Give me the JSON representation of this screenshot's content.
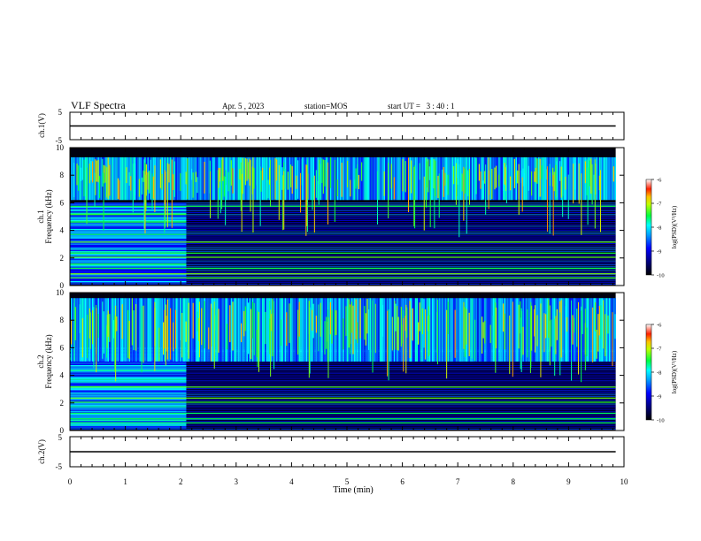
{
  "header": {
    "title": "VLF Spectra",
    "date": "Apr. 5 , 2023",
    "station": "station=MOS",
    "start": "start UT =   3 : 40 : 1"
  },
  "chart_data": [
    {
      "type": "line",
      "name": "ch1-voltage",
      "ylabel": "ch.1(V)",
      "ylim": [
        -5,
        5
      ],
      "yticks": [
        "5",
        "-5"
      ],
      "x": [
        0,
        9.85
      ],
      "values": [
        0,
        0
      ]
    },
    {
      "type": "heatmap",
      "name": "ch1-spectrogram",
      "ylabel": "ch.1\nFrequency (kHz)",
      "ylim": [
        0,
        10
      ],
      "yticks": [
        "0",
        "2",
        "4",
        "6",
        "8",
        "10"
      ],
      "data_xlim": [
        0,
        9.85
      ],
      "noise_band_end_min": 2.1,
      "chorus_band_khz": [
        6.2,
        9.3
      ],
      "colorbar": {
        "label": "log(PSD)(V²/Hz)",
        "range": [
          -10,
          -6
        ],
        "ticks": [
          "-6",
          "-7",
          "-8",
          "-9",
          "-10"
        ]
      }
    },
    {
      "type": "heatmap",
      "name": "ch2-spectrogram",
      "ylabel": "ch.2\nFrequency (kHz)",
      "ylim": [
        0,
        10
      ],
      "yticks": [
        "0",
        "2",
        "4",
        "6",
        "8",
        "10"
      ],
      "data_xlim": [
        0,
        9.85
      ],
      "noise_band_end_min": 2.1,
      "chorus_band_khz": [
        5.0,
        9.6
      ],
      "colorbar": {
        "label": "log(PSD)(V²/Hz)",
        "range": [
          -10,
          -6
        ],
        "ticks": [
          "-6",
          "-7",
          "-8",
          "-9",
          "-10"
        ]
      }
    },
    {
      "type": "line",
      "name": "ch2-voltage",
      "ylabel": "ch.2(V)",
      "ylim": [
        -5,
        5
      ],
      "yticks": [
        "5",
        "-5"
      ],
      "x": [
        0,
        9.85
      ],
      "values": [
        0,
        0
      ]
    }
  ],
  "xaxis": {
    "label": "Time (min)",
    "xlim": [
      0,
      10
    ],
    "ticks": [
      "0",
      "1",
      "2",
      "3",
      "4",
      "5",
      "6",
      "7",
      "8",
      "9",
      "10"
    ]
  },
  "colors": {
    "colormap": [
      "#000090",
      "#0000ff",
      "#0090ff",
      "#00ffff",
      "#00ff00",
      "#ffff00",
      "#ff8000",
      "#ff0000",
      "#ffffff"
    ]
  }
}
